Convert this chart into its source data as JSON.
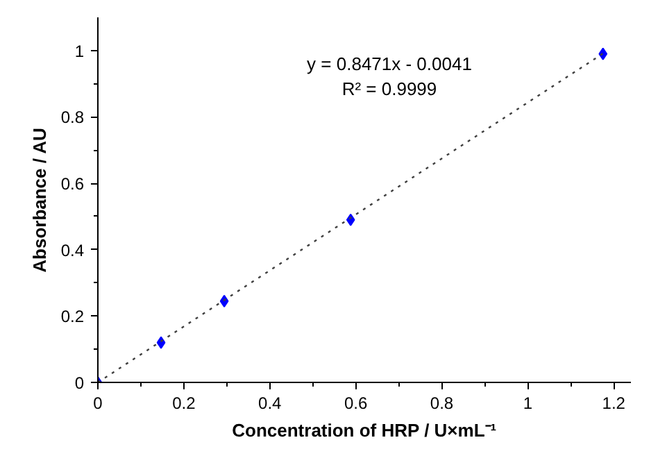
{
  "chart_data": {
    "type": "scatter",
    "xlabel": "Concentration of HRP / U×mL⁻¹",
    "ylabel": "Absorbance / AU",
    "x": [
      0,
      0.147,
      0.294,
      0.588,
      1.175
    ],
    "series": [
      {
        "color": "#0000ff",
        "values": [
          0,
          0.12,
          0.245,
          0.49,
          0.99
        ],
        "marker": "diamond"
      },
      {
        "type": "line",
        "color": "#404040",
        "x": [
          0,
          1.175
        ],
        "values": [
          0,
          0.991
        ],
        "line_style": "dotted",
        "marker": "none"
      }
    ],
    "annotations": [
      "y = 0.8471x - 0.0041",
      "R² = 0.9999"
    ],
    "xlim": [
      0,
      1.24
    ],
    "ylim": [
      0,
      1.1
    ],
    "xticks": [
      0,
      0.2,
      0.4,
      0.6,
      0.8,
      1,
      1.2
    ],
    "yticks": [
      0,
      0.2,
      0.4,
      0.6,
      0.8,
      1
    ],
    "grid": false
  }
}
